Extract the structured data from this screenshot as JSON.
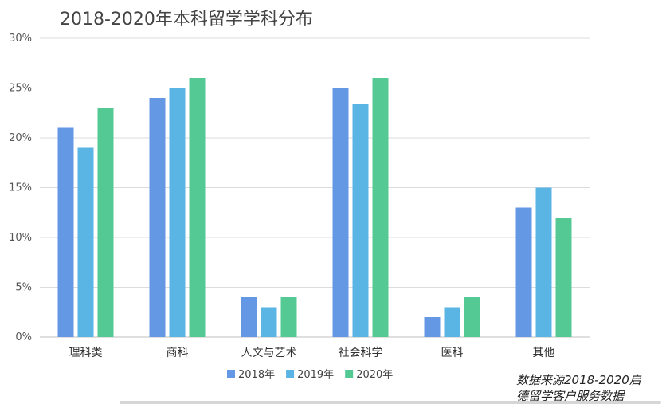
{
  "chart_data": {
    "type": "bar",
    "title": "2018-2020年本科留学学科分布",
    "categories": [
      "理科类",
      "商科",
      "人文与艺术",
      "社会科学",
      "医科",
      "其他"
    ],
    "series": [
      {
        "name": "2018年",
        "color": "#6497e4",
        "values": [
          21,
          24,
          4,
          25,
          2,
          13
        ]
      },
      {
        "name": "2019年",
        "color": "#5ab4e4",
        "values": [
          19,
          25,
          3,
          23.4,
          3,
          15
        ]
      },
      {
        "name": "2020年",
        "color": "#55c994",
        "values": [
          23,
          26,
          4,
          26,
          4,
          12
        ]
      }
    ],
    "ylim": [
      0,
      30
    ],
    "yticks": [
      "0%",
      "5%",
      "10%",
      "15%",
      "20%",
      "25%",
      "30%"
    ],
    "ytick_values": [
      0,
      5,
      10,
      15,
      20,
      25,
      30
    ],
    "y_unit": "%",
    "grid": true,
    "legend_position": "bottom-center"
  },
  "source_note": {
    "line1": "数据来源2018-2020启",
    "line2": "德留学客户服务数据"
  }
}
